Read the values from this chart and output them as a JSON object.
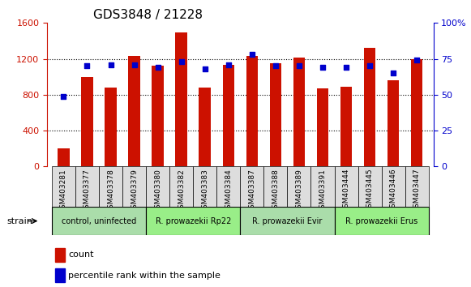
{
  "title": "GDS3848 / 21228",
  "samples": [
    "GSM403281",
    "GSM403377",
    "GSM403378",
    "GSM403379",
    "GSM403380",
    "GSM403382",
    "GSM403383",
    "GSM403384",
    "GSM403387",
    "GSM403388",
    "GSM403389",
    "GSM403391",
    "GSM403444",
    "GSM403445",
    "GSM403446",
    "GSM403447"
  ],
  "counts": [
    200,
    1000,
    880,
    1230,
    1120,
    1490,
    880,
    1130,
    1230,
    1150,
    1210,
    870,
    890,
    1320,
    960,
    1200
  ],
  "percentiles": [
    49,
    70,
    71,
    71,
    69,
    73,
    68,
    71,
    78,
    70,
    70,
    69,
    69,
    70,
    65,
    74
  ],
  "left_ylim": [
    0,
    1600
  ],
  "right_ylim": [
    0,
    100
  ],
  "left_yticks": [
    0,
    400,
    800,
    1200,
    1600
  ],
  "right_yticks": [
    0,
    25,
    50,
    75,
    100
  ],
  "right_yticklabels": [
    "0",
    "25",
    "50",
    "75",
    "100%"
  ],
  "bar_color": "#CC1100",
  "point_color": "#0000CC",
  "bar_width": 0.5,
  "groups": [
    {
      "label": "control, uninfected",
      "start": 0,
      "end": 4,
      "color": "#99EE88"
    },
    {
      "label": "R. prowazekii Rp22",
      "start": 4,
      "end": 8,
      "color": "#99EE88"
    },
    {
      "label": "R. prowazekii Evir",
      "start": 8,
      "end": 12,
      "color": "#99EE88"
    },
    {
      "label": "R. prowazekii Erus",
      "start": 12,
      "end": 16,
      "color": "#99EE88"
    }
  ],
  "strain_label": "strain",
  "legend_count_label": "count",
  "legend_percentile_label": "percentile rank within the sample",
  "grid_color": "#000000",
  "title_fontsize": 11,
  "tick_fontsize": 7,
  "xlabel_fontsize": 8
}
